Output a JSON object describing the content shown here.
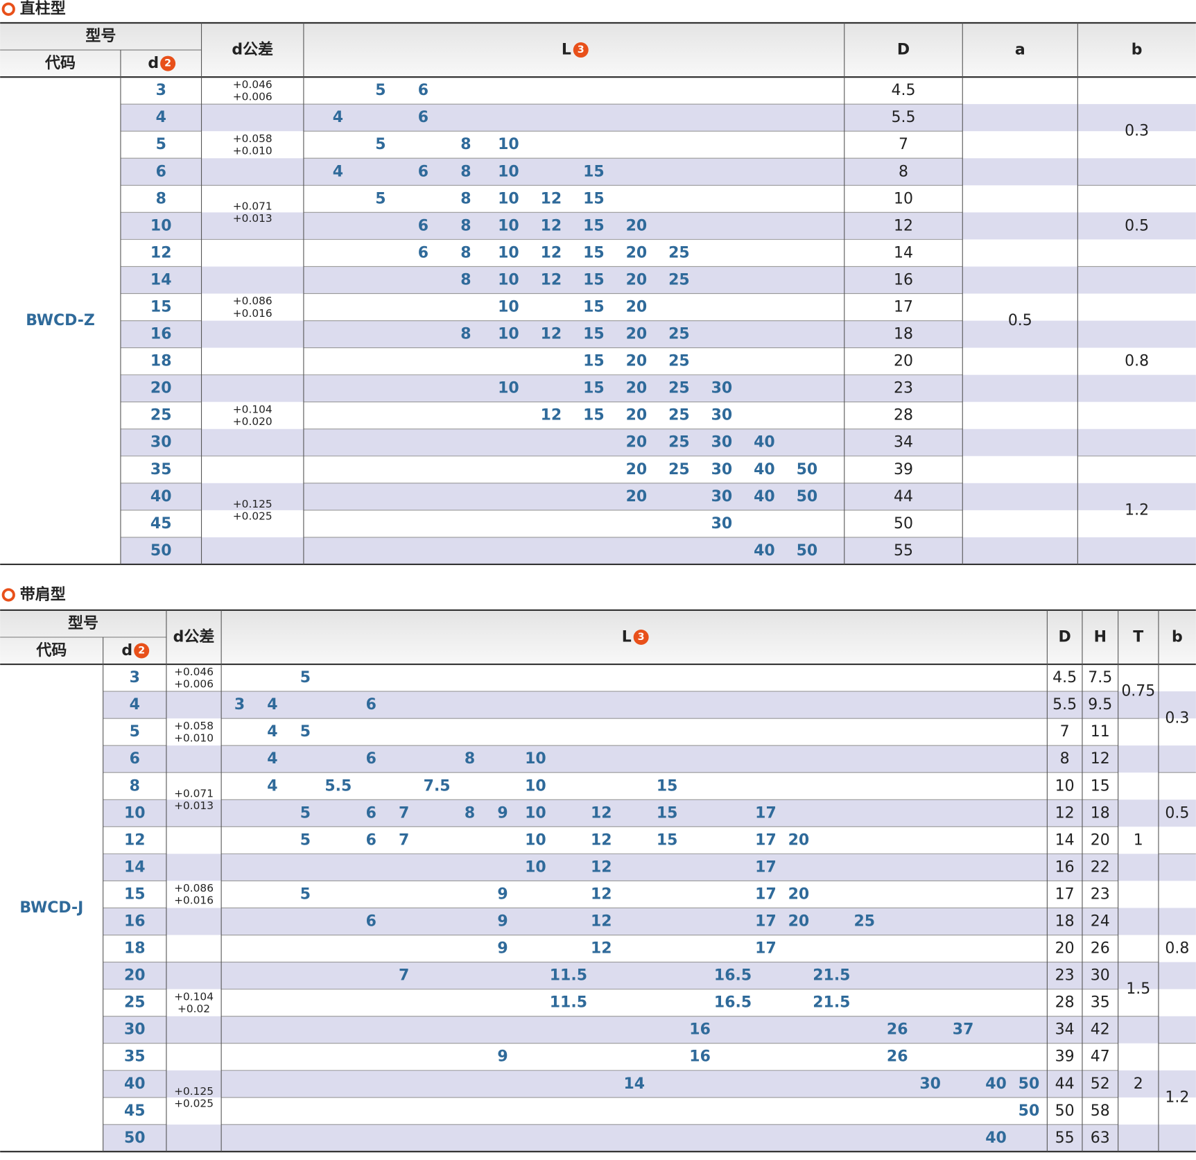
{
  "sections": [
    {
      "title": "直柱型",
      "header": {
        "model": "型号",
        "code": "代码",
        "d": "d",
        "d_badge": "2",
        "tolerance": "d公差",
        "L": "L",
        "L_badge": "3"
      },
      "code": "BWCD-Z",
      "rows": [
        {
          "d": 3,
          "L": [
            5,
            6
          ]
        },
        {
          "d": 4,
          "L": [
            4,
            6
          ]
        },
        {
          "d": 5,
          "L": [
            5,
            8,
            10
          ]
        },
        {
          "d": 6,
          "L": [
            4,
            6,
            8,
            10,
            15
          ]
        },
        {
          "d": 8,
          "L": [
            5,
            8,
            10,
            12,
            15
          ]
        },
        {
          "d": 10,
          "L": [
            6,
            8,
            10,
            12,
            15,
            20
          ]
        },
        {
          "d": 12,
          "L": [
            6,
            8,
            10,
            12,
            15,
            20,
            25
          ]
        },
        {
          "d": 14,
          "L": [
            8,
            10,
            12,
            15,
            20,
            25
          ]
        },
        {
          "d": 15,
          "L": [
            10,
            15,
            20
          ]
        },
        {
          "d": 16,
          "L": [
            8,
            10,
            12,
            15,
            20,
            25
          ]
        },
        {
          "d": 18,
          "L": [
            15,
            20,
            25
          ]
        },
        {
          "d": 20,
          "L": [
            10,
            15,
            20,
            25,
            30
          ]
        },
        {
          "d": 25,
          "L": [
            12,
            15,
            20,
            25,
            30
          ]
        },
        {
          "d": 30,
          "L": [
            20,
            25,
            30,
            40
          ]
        },
        {
          "d": 35,
          "L": [
            20,
            25,
            30,
            40,
            50
          ]
        },
        {
          "d": 40,
          "L": [
            20,
            30,
            40,
            50
          ]
        },
        {
          "d": 45,
          "L": [
            30
          ]
        },
        {
          "d": 50,
          "L": [
            40,
            50
          ]
        }
      ],
      "tolerance": [
        {
          "upper": "+0.046",
          "lower": "+0.006",
          "rows": 1
        },
        {
          "upper": "+0.058",
          "lower": "+0.010",
          "rows": 3
        },
        {
          "upper": "+0.071",
          "lower": "+0.013",
          "rows": 2
        },
        {
          "upper": "+0.086",
          "lower": "+0.016",
          "rows": 5
        },
        {
          "upper": "+0.104",
          "lower": "+0.020",
          "rows": 3
        },
        {
          "upper": "+0.125",
          "lower": "+0.025",
          "rows": 4
        }
      ],
      "columns": [
        {
          "name": "D",
          "values": [
            4.5,
            5.5,
            7,
            8,
            10,
            12,
            14,
            16,
            17,
            18,
            20,
            23,
            28,
            34,
            39,
            44,
            50,
            55
          ]
        },
        {
          "name": "a",
          "groups": [
            {
              "value": 0.5,
              "rows": 18
            }
          ]
        },
        {
          "name": "b",
          "groups": [
            {
              "value": 0.3,
              "rows": 4
            },
            {
              "value": 0.5,
              "rows": 3
            },
            {
              "value": 0.8,
              "rows": 7
            },
            {
              "value": 1.2,
              "rows": 4
            }
          ]
        }
      ]
    },
    {
      "title": "带肩型",
      "header": {
        "model": "型号",
        "code": "代码",
        "d": "d",
        "d_badge": "2",
        "tolerance": "d公差",
        "L": "L",
        "L_badge": "3"
      },
      "code": "BWCD-J",
      "rows": [
        {
          "d": 3,
          "L": [
            5
          ]
        },
        {
          "d": 4,
          "L": [
            3,
            4,
            6
          ]
        },
        {
          "d": 5,
          "L": [
            4,
            5
          ]
        },
        {
          "d": 6,
          "L": [
            4,
            6,
            8,
            10
          ]
        },
        {
          "d": 8,
          "L": [
            4,
            5.5,
            7.5,
            10,
            15
          ]
        },
        {
          "d": 10,
          "L": [
            5,
            6,
            7,
            8,
            9,
            10,
            12,
            15,
            17
          ]
        },
        {
          "d": 12,
          "L": [
            5,
            6,
            7,
            10,
            12,
            15,
            17,
            20
          ]
        },
        {
          "d": 14,
          "L": [
            10,
            12,
            17
          ]
        },
        {
          "d": 15,
          "L": [
            5,
            9,
            12,
            17,
            20
          ]
        },
        {
          "d": 16,
          "L": [
            6,
            9,
            12,
            17,
            20,
            25
          ]
        },
        {
          "d": 18,
          "L": [
            9,
            12,
            17
          ]
        },
        {
          "d": 20,
          "L": [
            7,
            11.5,
            16.5,
            21.5
          ]
        },
        {
          "d": 25,
          "L": [
            11.5,
            16.5,
            21.5
          ]
        },
        {
          "d": 30,
          "L": [
            16,
            26,
            37
          ]
        },
        {
          "d": 35,
          "L": [
            9,
            16,
            26
          ]
        },
        {
          "d": 40,
          "L": [
            14,
            30,
            40,
            50
          ]
        },
        {
          "d": 45,
          "L": [
            50
          ]
        },
        {
          "d": 50,
          "L": [
            40
          ]
        }
      ],
      "tolerance": [
        {
          "upper": "+0.046",
          "lower": "+0.006",
          "rows": 1
        },
        {
          "upper": "+0.058",
          "lower": "+0.010",
          "rows": 3
        },
        {
          "upper": "+0.071",
          "lower": "+0.013",
          "rows": 2
        },
        {
          "upper": "+0.086",
          "lower": "+0.016",
          "rows": 5
        },
        {
          "upper": "+0.104",
          "lower": "+0.02",
          "rows": 3
        },
        {
          "upper": "+0.125",
          "lower": "+0.025",
          "rows": 4
        }
      ],
      "columns": [
        {
          "name": "D",
          "values": [
            4.5,
            5.5,
            7,
            8,
            10,
            12,
            14,
            16,
            17,
            18,
            20,
            23,
            28,
            34,
            39,
            44,
            50,
            55
          ]
        },
        {
          "name": "H",
          "values": [
            7.5,
            9.5,
            11,
            12,
            15,
            18,
            20,
            22,
            23,
            24,
            26,
            30,
            35,
            42,
            47,
            52,
            58,
            63
          ]
        },
        {
          "name": "T",
          "groups": [
            {
              "value": 0.75,
              "rows": 2
            },
            {
              "value": 1,
              "rows": 9
            },
            {
              "value": 1.5,
              "rows": 2
            },
            {
              "value": 2,
              "rows": 5
            }
          ]
        },
        {
          "name": "b",
          "groups": [
            {
              "value": 0.3,
              "rows": 4
            },
            {
              "value": 0.5,
              "rows": 3
            },
            {
              "value": 0.8,
              "rows": 7
            },
            {
              "value": 1.2,
              "rows": 4
            }
          ]
        }
      ]
    }
  ]
}
